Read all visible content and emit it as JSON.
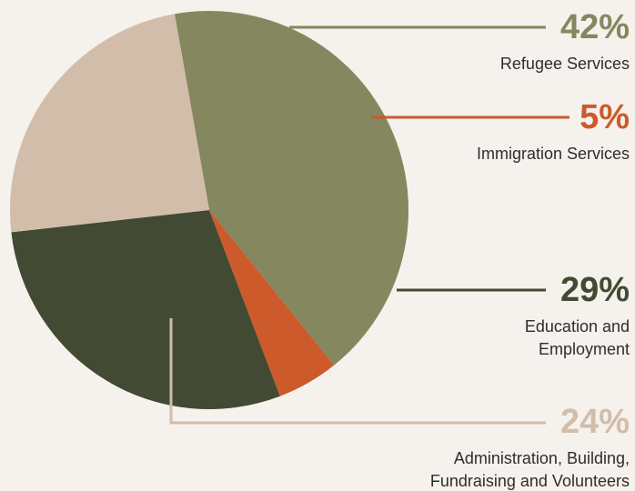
{
  "chart_data": {
    "type": "pie",
    "start_angle_deg": 260,
    "direction": "clockwise",
    "slices": [
      {
        "label_lines": [
          "Refugee Services"
        ],
        "value": 42,
        "value_text": "42%",
        "color": "#85875f"
      },
      {
        "label_lines": [
          "Immigration Services"
        ],
        "value": 5,
        "value_text": "5%",
        "color": "#cc5a2b"
      },
      {
        "label_lines": [
          "Education and",
          "Employment"
        ],
        "value": 29,
        "value_text": "29%",
        "color": "#424a34"
      },
      {
        "label_lines": [
          "Administration, Building,",
          "Fundraising and Volunteers"
        ],
        "value": 24,
        "value_text": "24%",
        "color": "#d1bda9"
      }
    ]
  }
}
